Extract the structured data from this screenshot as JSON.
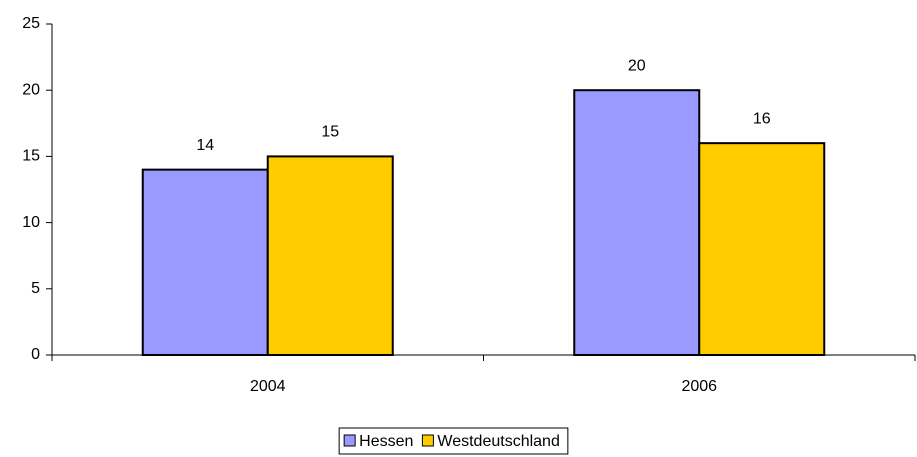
{
  "chart_data": {
    "type": "bar",
    "categories": [
      "2004",
      "2006"
    ],
    "series": [
      {
        "name": "Hessen",
        "color": "#9999ff",
        "values": [
          14,
          20
        ]
      },
      {
        "name": "Westdeutschland",
        "color": "#ffcc00",
        "values": [
          15,
          16
        ]
      }
    ],
    "ylim": [
      0,
      25
    ],
    "yticks": [
      0,
      5,
      10,
      15,
      20,
      25
    ],
    "grid": false,
    "data_labels": true,
    "legend": "bottom"
  }
}
